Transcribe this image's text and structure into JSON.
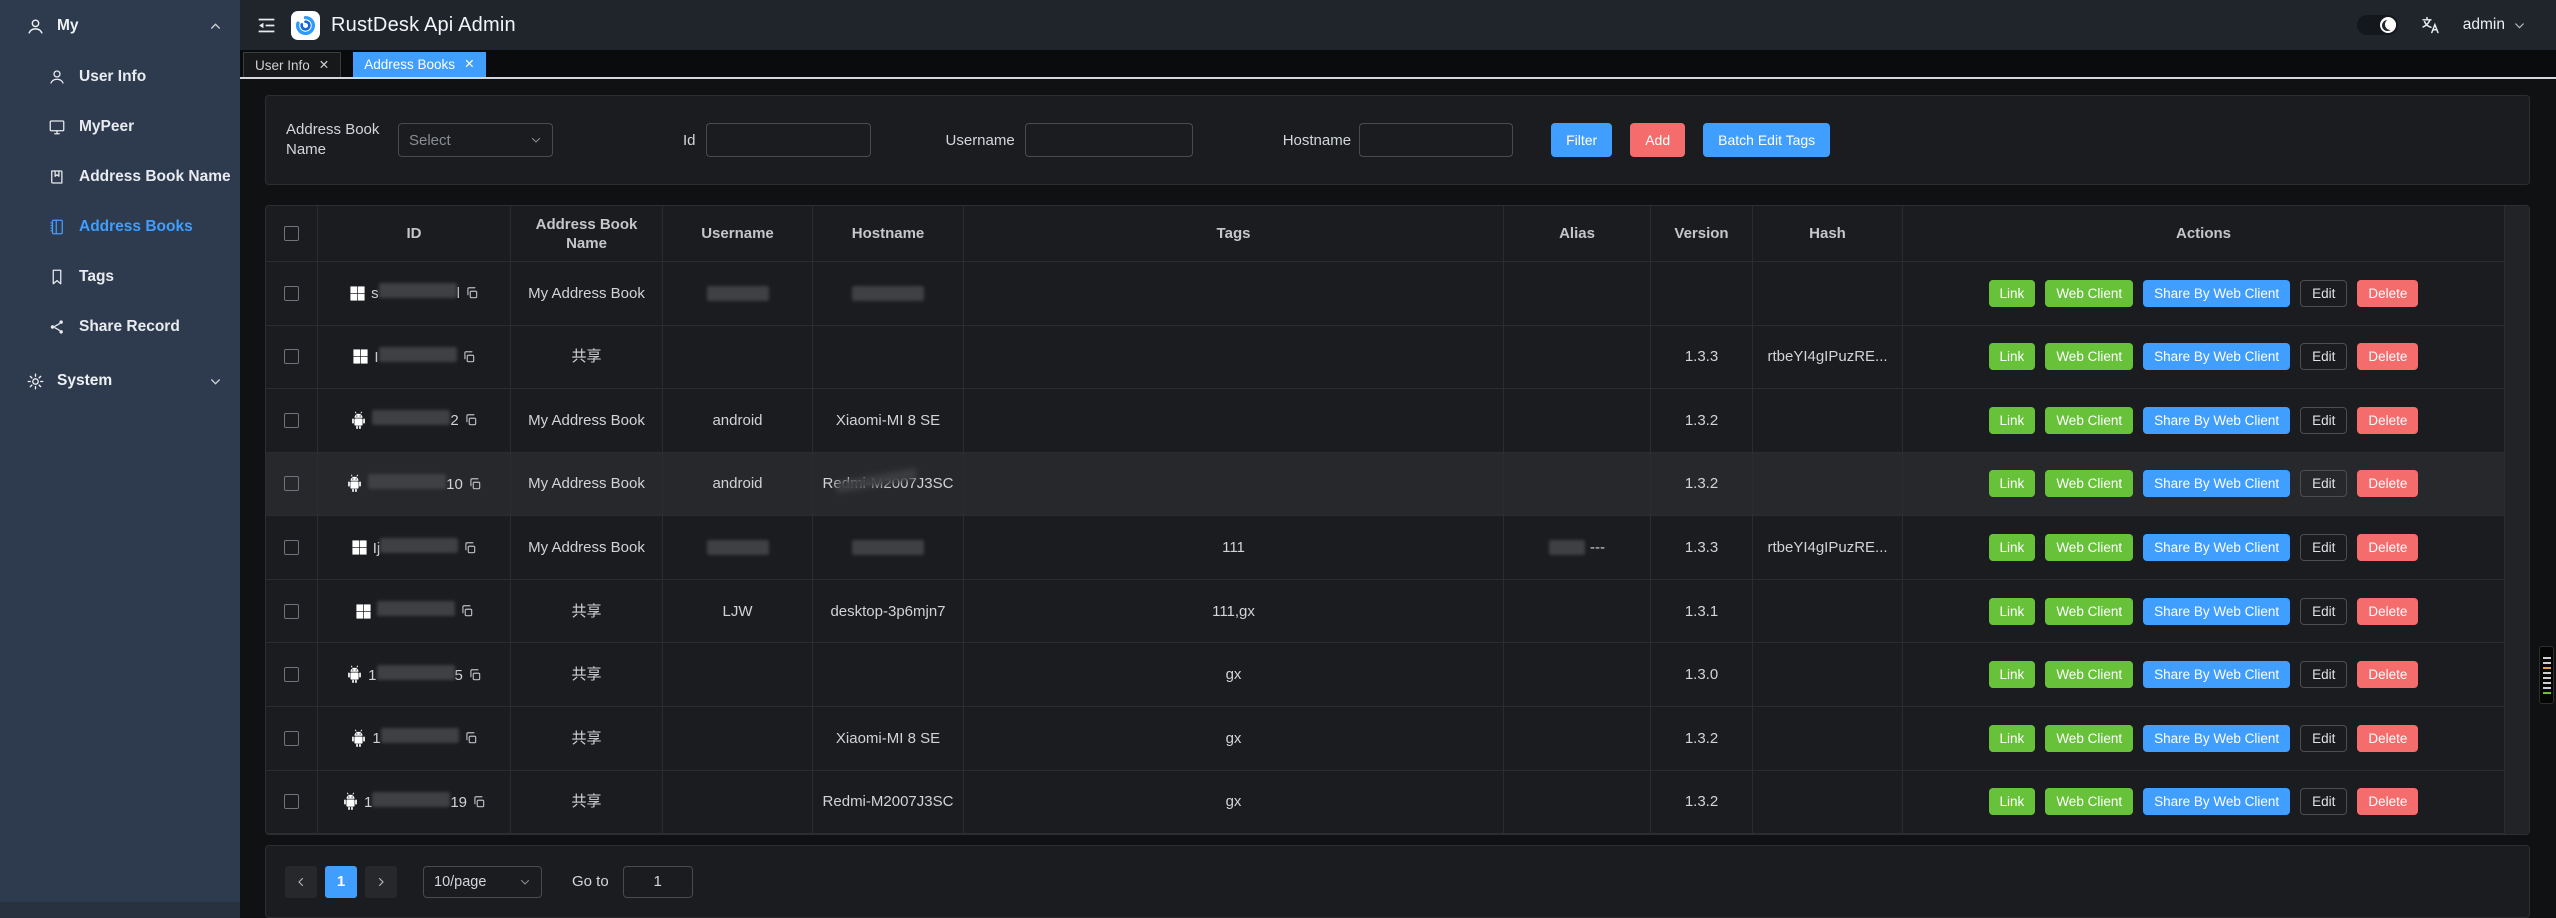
{
  "header": {
    "title": "RustDesk Api Admin",
    "user_menu": "admin"
  },
  "sidebar": {
    "group_label": "My",
    "items": [
      {
        "label": "User Info",
        "icon": "user-icon"
      },
      {
        "label": "MyPeer",
        "icon": "monitor-icon"
      },
      {
        "label": "Address Book Name",
        "icon": "book-icon"
      },
      {
        "label": "Address Books",
        "icon": "notebook-icon",
        "active": true
      },
      {
        "label": "Tags",
        "icon": "bookmark-icon"
      },
      {
        "label": "Share Record",
        "icon": "share-icon"
      }
    ],
    "system_label": "System"
  },
  "tabs": [
    {
      "label": "User Info",
      "active": false
    },
    {
      "label": "Address Books",
      "active": true
    }
  ],
  "filter": {
    "address_book_name_label": "Address Book Name",
    "select_placeholder": "Select",
    "id_label": "Id",
    "username_label": "Username",
    "hostname_label": "Hostname",
    "filter_button": "Filter",
    "add_button": "Add",
    "batch_button": "Batch Edit Tags"
  },
  "table": {
    "columns": [
      "ID",
      "Address Book Name",
      "Username",
      "Hostname",
      "Tags",
      "Alias",
      "Version",
      "Hash",
      "Actions"
    ],
    "action_labels": [
      "Link",
      "Web Client",
      "Share By Web Client",
      "Edit",
      "Delete"
    ],
    "rows": [
      {
        "os": "windows",
        "id": {
          "prefix": "s",
          "redacted": true,
          "suffix": "l"
        },
        "book": "My Address Book",
        "username": {
          "redacted": true
        },
        "hostname": {
          "redacted": true
        },
        "tags": "",
        "alias": "",
        "version": "",
        "hash": ""
      },
      {
        "os": "windows",
        "id": {
          "prefix": "I",
          "redacted": true,
          "suffix": ""
        },
        "book": "共享",
        "username": "",
        "hostname": "",
        "tags": "",
        "alias": "",
        "version": "1.3.3",
        "hash": "rtbeYI4gIPuzRE..."
      },
      {
        "os": "android",
        "id": {
          "prefix": "",
          "redacted": true,
          "suffix": "2"
        },
        "book": "My Address Book",
        "username": "android",
        "hostname": "Xiaomi-MI 8 SE",
        "tags": "",
        "alias": "",
        "version": "1.3.2",
        "hash": ""
      },
      {
        "os": "android",
        "id": {
          "prefix": "",
          "redacted": true,
          "suffix": "10"
        },
        "book": "My Address Book",
        "username": "android",
        "hostname": {
          "text": "Redmi-M2007J3SC",
          "smudge": true
        },
        "tags": "",
        "alias": "",
        "version": "1.3.2",
        "hash": "",
        "highlight": true
      },
      {
        "os": "windows",
        "id": {
          "prefix": "Ij",
          "redacted": true,
          "suffix": ""
        },
        "book": "My Address Book",
        "username": {
          "redacted": true
        },
        "hostname": {
          "redacted": true
        },
        "tags": "111",
        "alias": {
          "redacted": true,
          "suffix": "---"
        },
        "version": "1.3.3",
        "hash": "rtbeYI4gIPuzRE..."
      },
      {
        "os": "windows",
        "id": {
          "prefix": "",
          "redacted": true,
          "suffix": ""
        },
        "book": "共享",
        "username": "LJW",
        "hostname": "desktop-3p6mjn7",
        "tags": "111,gx",
        "alias": "",
        "version": "1.3.1",
        "hash": ""
      },
      {
        "os": "android",
        "id": {
          "prefix": "1",
          "redacted": true,
          "suffix": "5"
        },
        "book": "共享",
        "username": "",
        "hostname": "",
        "tags": "gx",
        "alias": "",
        "version": "1.3.0",
        "hash": ""
      },
      {
        "os": "android",
        "id": {
          "prefix": "1",
          "redacted": true,
          "suffix": ""
        },
        "book": "共享",
        "username": "",
        "hostname": "Xiaomi-MI 8 SE",
        "tags": "gx",
        "alias": "",
        "version": "1.3.2",
        "hash": ""
      },
      {
        "os": "android",
        "id": {
          "prefix": "1",
          "redacted": true,
          "suffix": "19"
        },
        "book": "共享",
        "username": "",
        "hostname": "Redmi-M2007J3SC",
        "tags": "gx",
        "alias": "",
        "version": "1.3.2",
        "hash": ""
      }
    ]
  },
  "pagination": {
    "current_page": "1",
    "per_page": "10/page",
    "goto_label": "Go to",
    "goto_value": "1"
  },
  "scroll_indicator_marks": [
    "#cfcfcf",
    "#cfcfcf",
    "#e6a23c",
    "#cfcfcf",
    "#cfcfcf",
    "#cfcfcf",
    "#cfcfcf",
    "#67c23a"
  ],
  "colors": {
    "accent_blue": "#409eff",
    "success_green": "#67c23a",
    "danger_red": "#f56c6c",
    "sidebar_bg": "#2e3a4d"
  }
}
